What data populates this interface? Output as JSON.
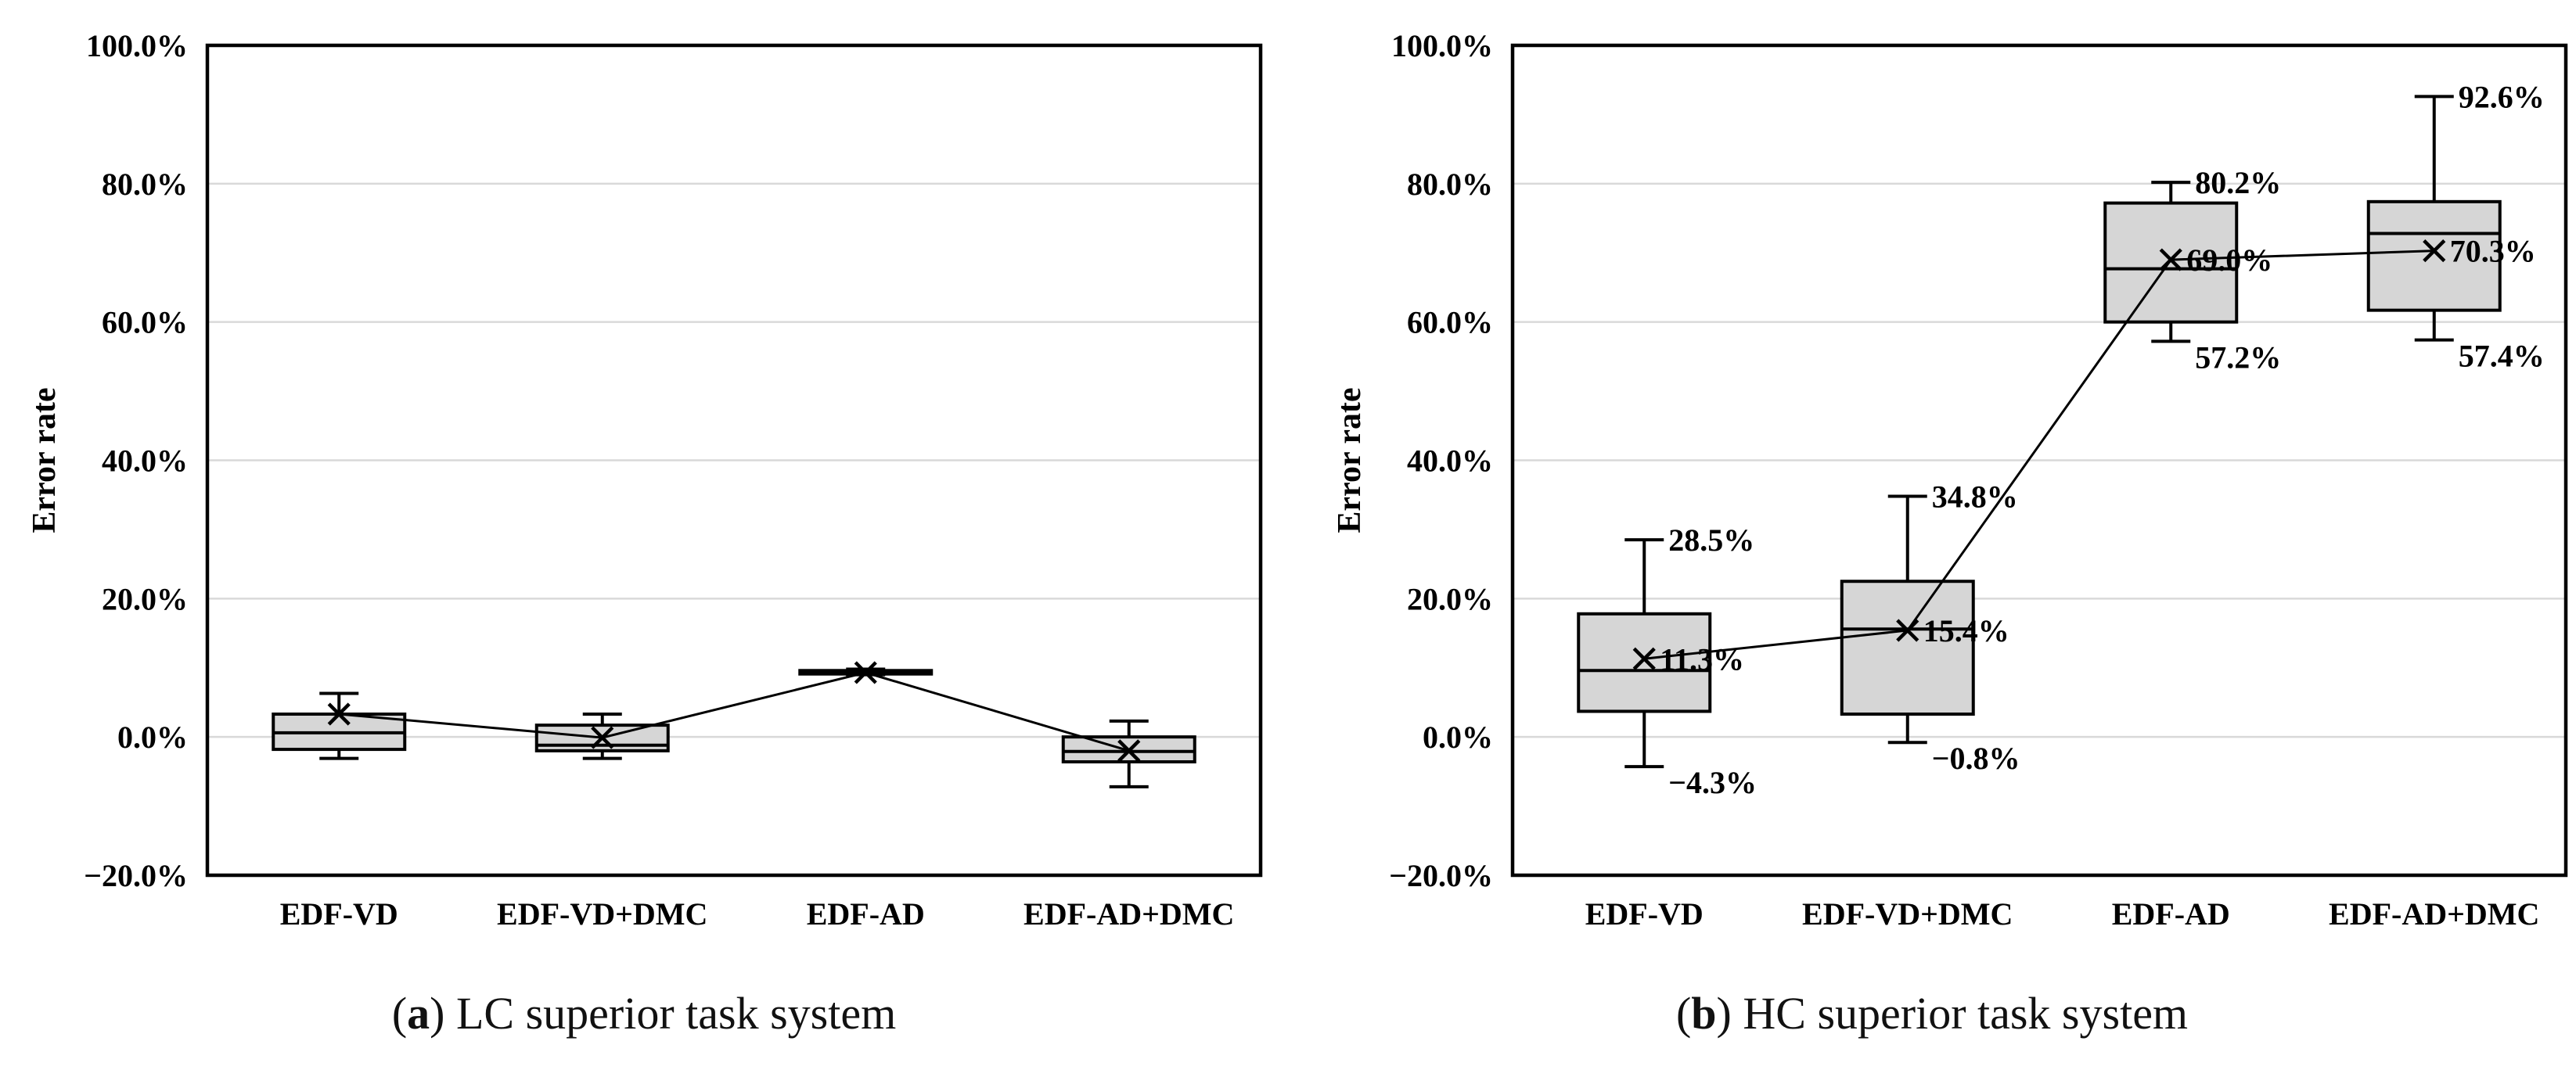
{
  "figure": {
    "background": "#ffffff",
    "box_fill": "#d6d6d6",
    "stroke_color": "#000000",
    "gridline_color": "#d9d9d9"
  },
  "captions": {
    "a": {
      "pre": "(",
      "letter": "a",
      "post": ") ",
      "text": "LC superior task system"
    },
    "b": {
      "pre": "(",
      "letter": "b",
      "post": ") ",
      "text": "HC superior task system"
    }
  },
  "chart_data": [
    {
      "type": "box",
      "panel": "a",
      "title": "(a) LC superior task system",
      "ylabel": "Error rate",
      "ylim": [
        -20,
        100
      ],
      "ytick_step": 20,
      "ytick_labels": [
        "100.0%",
        "80.0%",
        "60.0%",
        "40.0%",
        "20.0%",
        "0.0%",
        "−20.0%"
      ],
      "grid": true,
      "categories": [
        "EDF-VD",
        "EDF-VD+DMC",
        "EDF-AD",
        "EDF-AD+DMC"
      ],
      "boxes": [
        {
          "category": "EDF-VD",
          "min": -3.1,
          "q1": -1.8,
          "median": 0.6,
          "q3": 3.3,
          "max": 6.3,
          "mean": 3.3,
          "labels": {
            "max": "",
            "min": "",
            "mean": ""
          }
        },
        {
          "category": "EDF-VD+DMC",
          "min": -3.1,
          "q1": -2.0,
          "median": -1.2,
          "q3": 1.7,
          "max": 3.3,
          "mean": -0.1,
          "labels": {
            "max": "",
            "min": "",
            "mean": ""
          }
        },
        {
          "category": "EDF-AD",
          "min": 9.0,
          "q1": 9.1,
          "median": 9.3,
          "q3": 9.6,
          "max": 9.8,
          "mean": 9.3,
          "labels": {
            "max": "",
            "min": "",
            "mean": ""
          }
        },
        {
          "category": "EDF-AD+DMC",
          "min": -7.2,
          "q1": -3.6,
          "median": -2.1,
          "q3": 0.0,
          "max": 2.3,
          "mean": -2.0,
          "labels": {
            "max": "",
            "min": "",
            "mean": ""
          }
        }
      ]
    },
    {
      "type": "box",
      "panel": "b",
      "title": "(b) HC superior task system",
      "ylabel": "Error rate",
      "ylim": [
        -20,
        100
      ],
      "ytick_step": 20,
      "ytick_labels": [
        "100.0%",
        "80.0%",
        "60.0%",
        "40.0%",
        "20.0%",
        "0.0%",
        "−20.0%"
      ],
      "grid": true,
      "categories": [
        "EDF-VD",
        "EDF-VD+DMC",
        "EDF-AD",
        "EDF-AD+DMC"
      ],
      "boxes": [
        {
          "category": "EDF-VD",
          "min": -4.3,
          "q1": 3.7,
          "median": 9.6,
          "q3": 17.8,
          "max": 28.5,
          "mean": 11.3,
          "labels": {
            "max": "28.5%",
            "min": "−4.3%",
            "mean": "11.3%"
          }
        },
        {
          "category": "EDF-VD+DMC",
          "min": -0.8,
          "q1": 3.3,
          "median": 15.6,
          "q3": 22.5,
          "max": 34.8,
          "mean": 15.4,
          "labels": {
            "max": "34.8%",
            "min": "−0.8%",
            "mean": "15.4%"
          }
        },
        {
          "category": "EDF-AD",
          "min": 57.2,
          "q1": 60.0,
          "median": 67.7,
          "q3": 77.2,
          "max": 80.2,
          "mean": 69.0,
          "labels": {
            "max": "80.2%",
            "min": "57.2%",
            "mean": "69.0%"
          }
        },
        {
          "category": "EDF-AD+DMC",
          "min": 57.4,
          "q1": 61.7,
          "median": 72.8,
          "q3": 77.4,
          "max": 92.6,
          "mean": 70.3,
          "labels": {
            "max": "92.6%",
            "min": "57.4%",
            "mean": "70.3%"
          }
        }
      ]
    }
  ]
}
